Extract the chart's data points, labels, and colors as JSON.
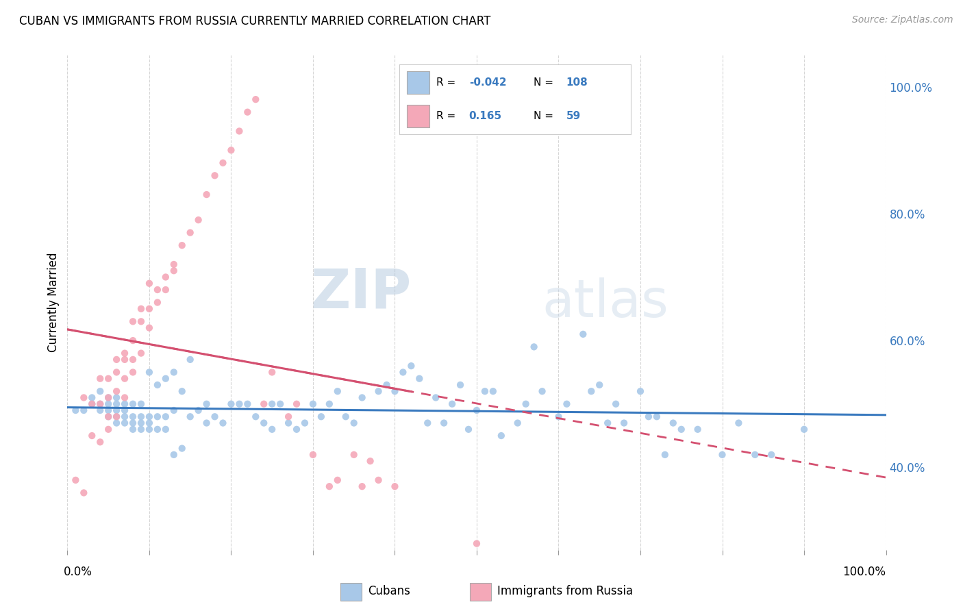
{
  "title": "CUBAN VS IMMIGRANTS FROM RUSSIA CURRENTLY MARRIED CORRELATION CHART",
  "source": "Source: ZipAtlas.com",
  "ylabel": "Currently Married",
  "right_yticks": [
    "100.0%",
    "80.0%",
    "60.0%",
    "40.0%"
  ],
  "right_ytick_vals": [
    1.0,
    0.8,
    0.6,
    0.4
  ],
  "legend_blue_r": "-0.042",
  "legend_blue_n": "108",
  "legend_pink_r": "0.165",
  "legend_pink_n": "59",
  "blue_color": "#a8c8e8",
  "pink_color": "#f4a8b8",
  "blue_line_color": "#3a7abf",
  "pink_line_color": "#d45070",
  "blue_text_color": "#3a7abf",
  "background_color": "#ffffff",
  "watermark_zip": "ZIP",
  "watermark_atlas": "atlas",
  "xlim": [
    0.0,
    1.0
  ],
  "ylim": [
    0.27,
    1.05
  ],
  "blue_scatter_x": [
    0.01,
    0.02,
    0.03,
    0.03,
    0.04,
    0.04,
    0.04,
    0.05,
    0.05,
    0.05,
    0.05,
    0.06,
    0.06,
    0.06,
    0.06,
    0.06,
    0.07,
    0.07,
    0.07,
    0.07,
    0.08,
    0.08,
    0.08,
    0.08,
    0.09,
    0.09,
    0.09,
    0.09,
    0.1,
    0.1,
    0.1,
    0.1,
    0.11,
    0.11,
    0.11,
    0.12,
    0.12,
    0.12,
    0.13,
    0.13,
    0.13,
    0.14,
    0.14,
    0.15,
    0.15,
    0.16,
    0.17,
    0.17,
    0.18,
    0.19,
    0.2,
    0.21,
    0.22,
    0.23,
    0.24,
    0.25,
    0.25,
    0.26,
    0.27,
    0.28,
    0.29,
    0.3,
    0.31,
    0.32,
    0.33,
    0.34,
    0.35,
    0.36,
    0.38,
    0.39,
    0.4,
    0.41,
    0.42,
    0.43,
    0.44,
    0.45,
    0.46,
    0.47,
    0.48,
    0.49,
    0.5,
    0.51,
    0.52,
    0.53,
    0.55,
    0.56,
    0.57,
    0.58,
    0.6,
    0.61,
    0.63,
    0.64,
    0.65,
    0.66,
    0.67,
    0.68,
    0.7,
    0.71,
    0.72,
    0.73,
    0.74,
    0.75,
    0.77,
    0.8,
    0.82,
    0.84,
    0.86,
    0.9
  ],
  "blue_scatter_y": [
    0.49,
    0.49,
    0.5,
    0.51,
    0.49,
    0.5,
    0.52,
    0.48,
    0.49,
    0.5,
    0.51,
    0.47,
    0.48,
    0.49,
    0.5,
    0.51,
    0.47,
    0.48,
    0.49,
    0.5,
    0.46,
    0.47,
    0.48,
    0.5,
    0.46,
    0.47,
    0.48,
    0.5,
    0.46,
    0.47,
    0.48,
    0.55,
    0.46,
    0.48,
    0.53,
    0.46,
    0.48,
    0.54,
    0.42,
    0.49,
    0.55,
    0.43,
    0.52,
    0.48,
    0.57,
    0.49,
    0.47,
    0.5,
    0.48,
    0.47,
    0.5,
    0.5,
    0.5,
    0.48,
    0.47,
    0.46,
    0.5,
    0.5,
    0.47,
    0.46,
    0.47,
    0.5,
    0.48,
    0.5,
    0.52,
    0.48,
    0.47,
    0.51,
    0.52,
    0.53,
    0.52,
    0.55,
    0.56,
    0.54,
    0.47,
    0.51,
    0.47,
    0.5,
    0.53,
    0.46,
    0.49,
    0.52,
    0.52,
    0.45,
    0.47,
    0.5,
    0.59,
    0.52,
    0.48,
    0.5,
    0.61,
    0.52,
    0.53,
    0.47,
    0.5,
    0.47,
    0.52,
    0.48,
    0.48,
    0.42,
    0.47,
    0.46,
    0.46,
    0.42,
    0.47,
    0.42,
    0.42,
    0.46
  ],
  "pink_scatter_x": [
    0.01,
    0.02,
    0.02,
    0.03,
    0.03,
    0.04,
    0.04,
    0.04,
    0.05,
    0.05,
    0.05,
    0.05,
    0.06,
    0.06,
    0.06,
    0.06,
    0.07,
    0.07,
    0.07,
    0.07,
    0.08,
    0.08,
    0.08,
    0.08,
    0.09,
    0.09,
    0.09,
    0.1,
    0.1,
    0.1,
    0.11,
    0.11,
    0.12,
    0.12,
    0.13,
    0.13,
    0.14,
    0.15,
    0.16,
    0.17,
    0.18,
    0.19,
    0.2,
    0.21,
    0.22,
    0.23,
    0.24,
    0.25,
    0.27,
    0.28,
    0.3,
    0.32,
    0.33,
    0.35,
    0.36,
    0.37,
    0.38,
    0.4,
    0.5
  ],
  "pink_scatter_y": [
    0.38,
    0.36,
    0.51,
    0.45,
    0.5,
    0.44,
    0.5,
    0.54,
    0.46,
    0.48,
    0.51,
    0.54,
    0.48,
    0.52,
    0.55,
    0.57,
    0.51,
    0.54,
    0.57,
    0.58,
    0.55,
    0.57,
    0.6,
    0.63,
    0.58,
    0.63,
    0.65,
    0.62,
    0.65,
    0.69,
    0.66,
    0.68,
    0.68,
    0.7,
    0.71,
    0.72,
    0.75,
    0.77,
    0.79,
    0.83,
    0.86,
    0.88,
    0.9,
    0.93,
    0.96,
    0.98,
    0.5,
    0.55,
    0.48,
    0.5,
    0.42,
    0.37,
    0.38,
    0.42,
    0.37,
    0.41,
    0.38,
    0.37,
    0.28
  ]
}
